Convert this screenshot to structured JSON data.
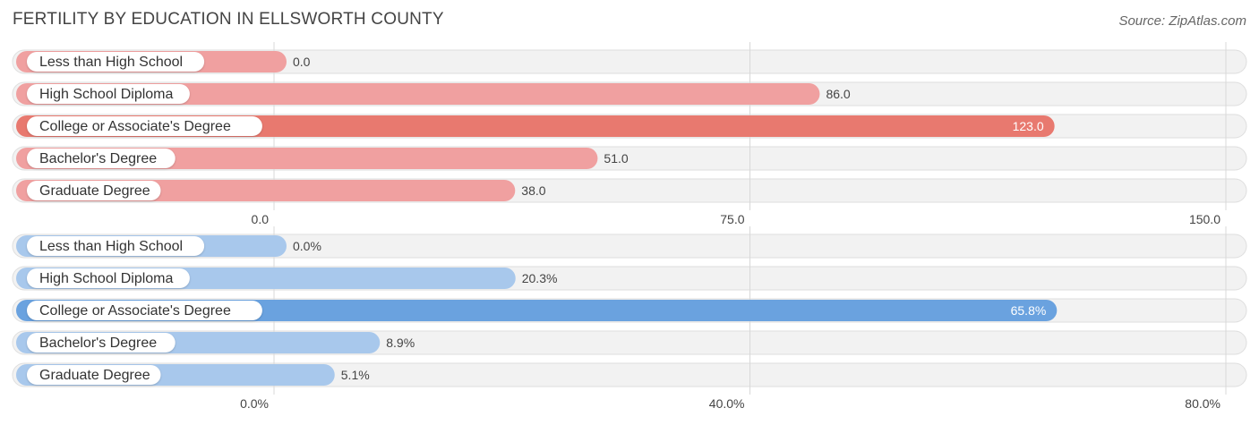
{
  "header": {
    "title": "FERTILITY BY EDUCATION IN ELLSWORTH COUNTY",
    "source": "Source: ZipAtlas.com"
  },
  "chart_data": [
    {
      "type": "bar",
      "orientation": "horizontal",
      "categories": [
        "Less than High School",
        "High School Diploma",
        "College or Associate's Degree",
        "Bachelor's Degree",
        "Graduate Degree"
      ],
      "values": [
        0.0,
        86.0,
        123.0,
        51.0,
        38.0
      ],
      "value_labels": [
        "0.0",
        "86.0",
        "123.0",
        "51.0",
        "38.0"
      ],
      "ticks": [
        "0.0",
        "75.0",
        "150.0"
      ],
      "xlim": [
        0,
        150
      ],
      "colors": {
        "bar": "#f0a0a0",
        "highlight": "#e8796f"
      },
      "highlight_index": 2
    },
    {
      "type": "bar",
      "orientation": "horizontal",
      "categories": [
        "Less than High School",
        "High School Diploma",
        "College or Associate's Degree",
        "Bachelor's Degree",
        "Graduate Degree"
      ],
      "values": [
        0.0,
        20.3,
        65.8,
        8.9,
        5.1
      ],
      "value_labels": [
        "0.0%",
        "20.3%",
        "65.8%",
        "8.9%",
        "5.1%"
      ],
      "ticks": [
        "0.0%",
        "40.0%",
        "80.0%"
      ],
      "xlim": [
        0,
        80
      ],
      "colors": {
        "bar": "#a8c8ec",
        "highlight": "#6aa2df"
      },
      "highlight_index": 2
    }
  ]
}
